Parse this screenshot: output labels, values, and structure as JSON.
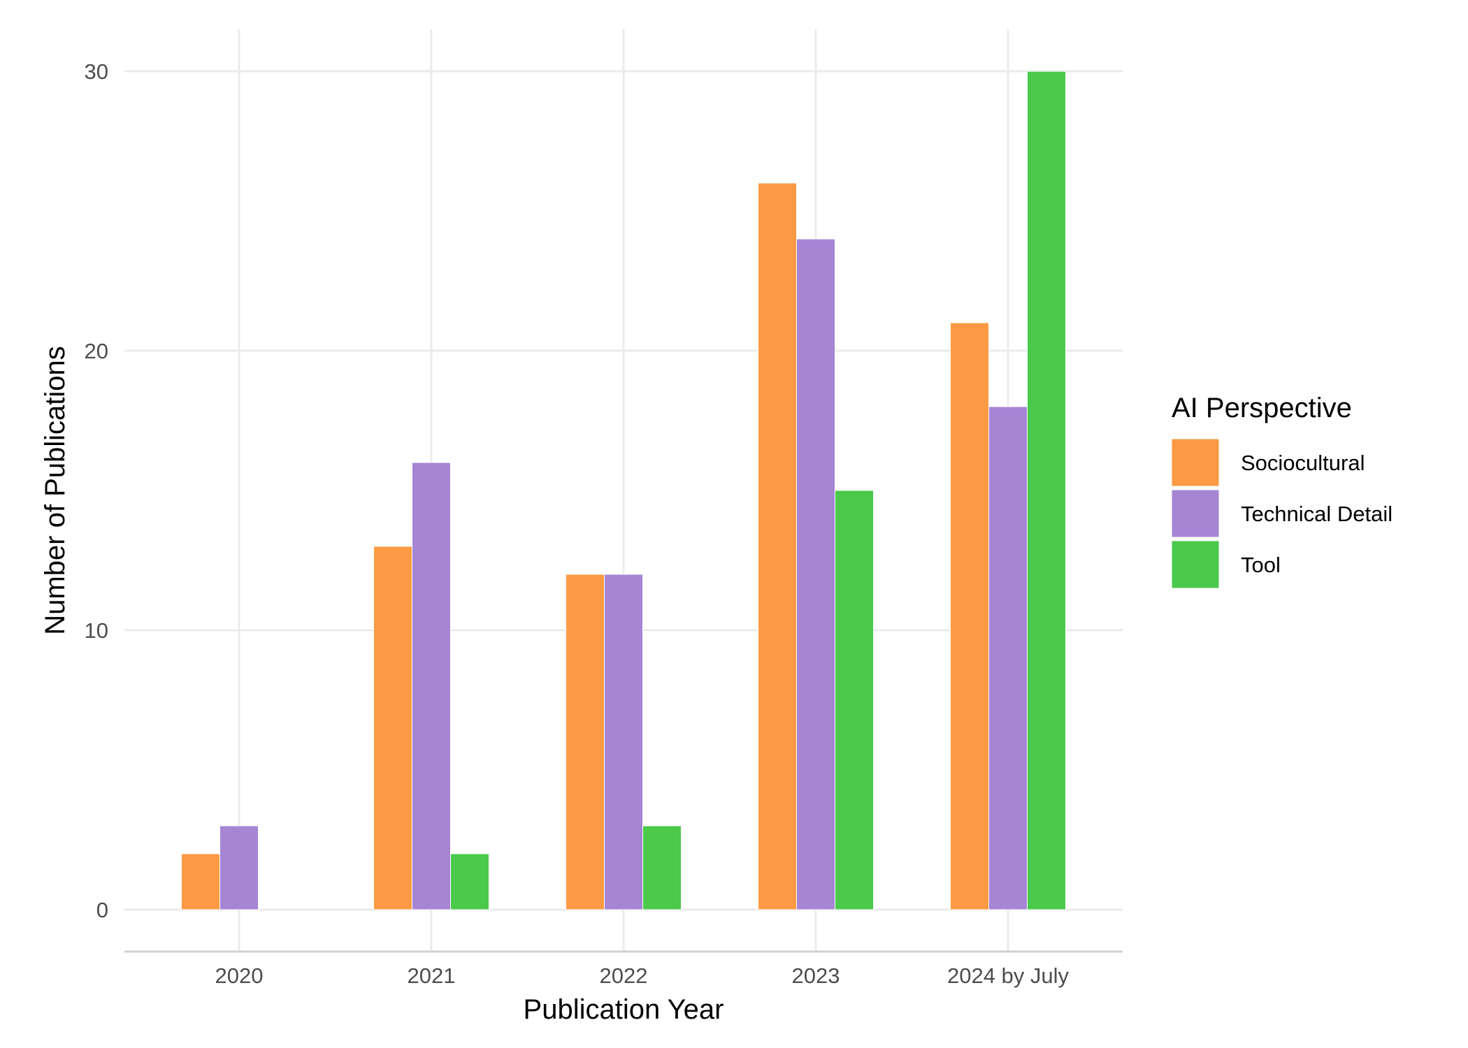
{
  "chart_data": {
    "type": "bar",
    "xlabel": "Publication Year",
    "ylabel": "Number of Publications",
    "categories": [
      "2020",
      "2021",
      "2022",
      "2023",
      "2024 by July"
    ],
    "series": [
      {
        "name": "Sociocultural",
        "color": "#FB9A43",
        "values": [
          2,
          13,
          12,
          26,
          21
        ]
      },
      {
        "name": "Technical Detail",
        "color": "#A585D4",
        "values": [
          3,
          16,
          12,
          24,
          18
        ]
      },
      {
        "name": "Tool",
        "color": "#4AC94A",
        "values": [
          0,
          2,
          3,
          15,
          30
        ]
      }
    ],
    "ylim": [
      0,
      30
    ],
    "yticks": [
      0,
      10,
      20,
      30
    ],
    "grid": true,
    "legend": {
      "title": "AI Perspective",
      "position": "right"
    }
  }
}
